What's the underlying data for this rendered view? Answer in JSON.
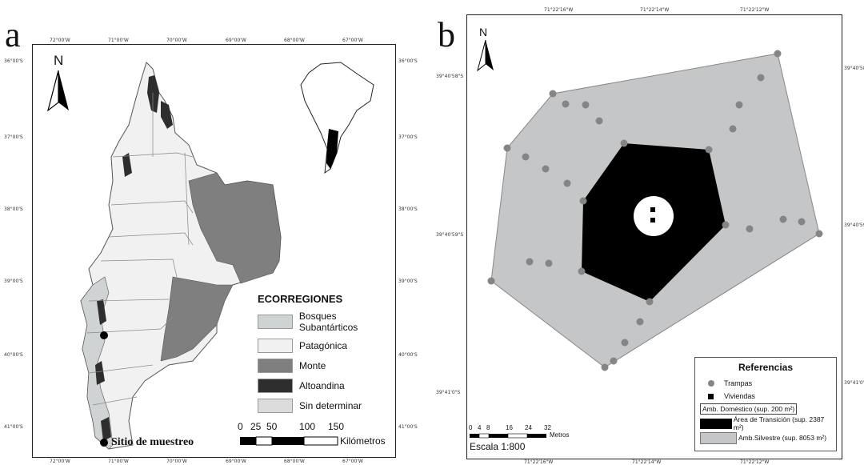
{
  "panel_a": {
    "letter": "a",
    "north_label": "N",
    "top_ticks": [
      "72°00'W",
      "71°00'W",
      "70°00'W",
      "69°00'W",
      "68°00'W",
      "67°00'W"
    ],
    "bottom_ticks": [
      "72°00'W",
      "71°00'W",
      "70°00'W",
      "69°00'W",
      "68°00'W",
      "67°00'W"
    ],
    "left_ticks": [
      "36°00'S",
      "37°00'S",
      "38°00'S",
      "39°00'S",
      "40°00'S",
      "41°00'S"
    ],
    "right_ticks": [
      "36°00'S",
      "37°00'S",
      "38°00'S",
      "39°00'S",
      "40°00'S",
      "41°00'S"
    ],
    "legend": {
      "title": "ECORREGIONES",
      "items": [
        {
          "label": "Bosques Subantárticos",
          "color": "#cfd3d3"
        },
        {
          "label": "Patagónica",
          "color": "#f1f1f1"
        },
        {
          "label": "Monte",
          "color": "#7f7f7f"
        },
        {
          "label": "Altoandina",
          "color": "#2e2e2e"
        },
        {
          "label": "Sin determinar",
          "color": "#dcdcdc"
        }
      ]
    },
    "scale": {
      "ticks": [
        "0",
        "25",
        "50",
        "100",
        "150"
      ],
      "unit": "Kilómetros"
    },
    "sample_site_label": "Sitio de muestreo"
  },
  "panel_b": {
    "letter": "b",
    "north_label": "N",
    "top_ticks": [
      "71°22'16\"W",
      "71°22'14\"W",
      "71°22'12\"W"
    ],
    "bottom_ticks": [
      "71°22'16\"W",
      "71°22'14\"W",
      "71°22'12\"W"
    ],
    "left_ticks": [
      "39°40'58\"S",
      "39°40'59\"S",
      "39°41'0\"S"
    ],
    "right_ticks": [
      "39°40'58\"S",
      "39°40'59\"S",
      "39°41'0\"S"
    ],
    "scale": {
      "ticks": [
        "0",
        "4",
        "8",
        "16",
        "24",
        "32"
      ],
      "unit": "Metros",
      "label": "Escala 1:800"
    },
    "references": {
      "title": "Referencias",
      "traps": "Trampas",
      "houses": "Viviendas",
      "domestic": "Amb. Doméstico (sup. 200 m²)",
      "transition": "Área de Transición (sup. 2387 m²)",
      "wild": "Amb.Silvestre (sup. 8053 m²)"
    },
    "colors": {
      "wild": "#c4c6c7",
      "transition": "#000000",
      "domestic": "#ffffff",
      "trap": "#858585"
    }
  }
}
